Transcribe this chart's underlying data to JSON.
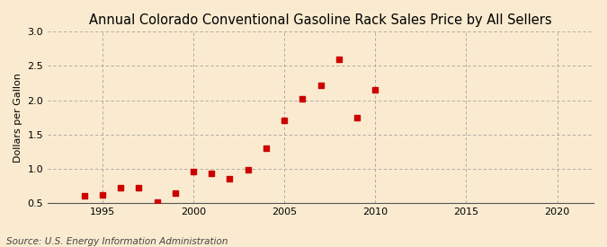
{
  "title": "Annual Colorado Conventional Gasoline Rack Sales Price by All Sellers",
  "ylabel": "Dollars per Gallon",
  "source": "Source: U.S. Energy Information Administration",
  "years": [
    1994,
    1995,
    1996,
    1997,
    1998,
    1999,
    2000,
    2001,
    2002,
    2003,
    2004,
    2005,
    2006,
    2007,
    2008,
    2009,
    2010
  ],
  "values": [
    0.6,
    0.62,
    0.72,
    0.72,
    0.51,
    0.64,
    0.96,
    0.93,
    0.85,
    0.99,
    1.3,
    1.71,
    2.02,
    2.22,
    2.6,
    1.74,
    2.15
  ],
  "xlim": [
    1992,
    2022
  ],
  "ylim": [
    0.5,
    3.0
  ],
  "xticks": [
    1995,
    2000,
    2005,
    2010,
    2015,
    2020
  ],
  "yticks": [
    0.5,
    1.0,
    1.5,
    2.0,
    2.5,
    3.0
  ],
  "marker_color": "#cc0000",
  "marker_size": 4,
  "bg_color": "#faebd0",
  "grid_color": "#999999",
  "title_fontsize": 10.5,
  "label_fontsize": 8,
  "tick_fontsize": 8,
  "source_fontsize": 7.5
}
